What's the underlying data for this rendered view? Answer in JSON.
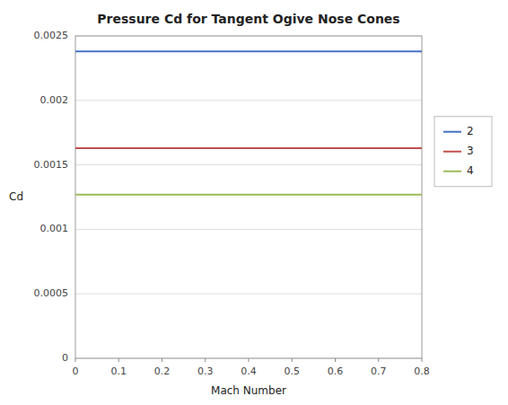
{
  "chart_data": {
    "type": "line",
    "title": "Pressure Cd for Tangent Ogive Nose Cones",
    "x_label": "Mach Number",
    "y_label": "Cd",
    "x": [
      0,
      0.8
    ],
    "series": [
      {
        "name": "2",
        "color": "#4472C4",
        "values": [
          0.00238,
          0.00238
        ]
      },
      {
        "name": "3",
        "color": "#C0504D",
        "values": [
          0.00163,
          0.00163
        ]
      },
      {
        "name": "4",
        "color": "#9BBB59",
        "values": [
          0.00127,
          0.00127
        ]
      }
    ],
    "xlim": [
      0,
      0.8
    ],
    "ylim": [
      0,
      0.0025
    ],
    "xticks": [
      0,
      0.1,
      0.2,
      0.3,
      0.4,
      0.5,
      0.6,
      0.7,
      0.8
    ],
    "yticks": [
      0,
      0.0005,
      0.001,
      0.0015,
      0.002,
      0.0025
    ],
    "grid": "y",
    "legend": "right"
  }
}
